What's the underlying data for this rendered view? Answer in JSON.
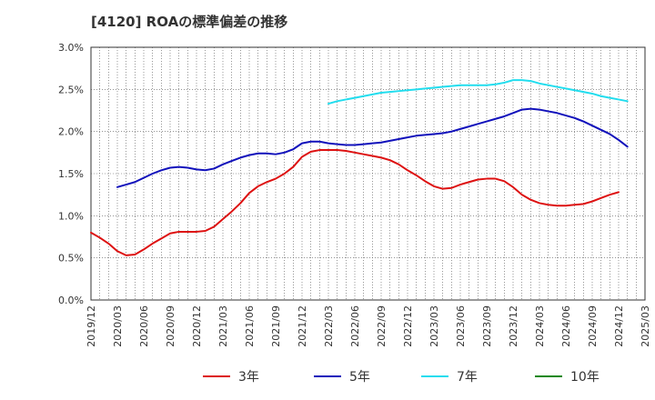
{
  "title": "[4120]  ROAの標準偏差の推移",
  "chart_data": {
    "type": "line",
    "title": "[4120]  ROAの標準偏差の推移",
    "xlabel": "",
    "ylabel": "",
    "ylim": [
      0,
      3.0
    ],
    "xlim": [
      "2019-12",
      "2025-03"
    ],
    "grid": true,
    "legend_position": "bottom",
    "y_ticks": [
      "0.0%",
      "0.5%",
      "1.0%",
      "1.5%",
      "2.0%",
      "2.5%",
      "3.0%"
    ],
    "x_ticks": [
      "2019/12",
      "2020/03",
      "2020/06",
      "2020/09",
      "2020/12",
      "2021/03",
      "2021/06",
      "2021/09",
      "2021/12",
      "2022/03",
      "2022/06",
      "2022/09",
      "2022/12",
      "2023/03",
      "2023/06",
      "2023/09",
      "2023/12",
      "2024/03",
      "2024/06",
      "2024/09",
      "2024/12",
      "2025/03"
    ],
    "series": [
      {
        "name": "3年",
        "color": "#dd1111",
        "points": [
          [
            "2019-12",
            0.8
          ],
          [
            "2020-01",
            0.74
          ],
          [
            "2020-02",
            0.67
          ],
          [
            "2020-03",
            0.58
          ],
          [
            "2020-04",
            0.53
          ],
          [
            "2020-05",
            0.54
          ],
          [
            "2020-06",
            0.6
          ],
          [
            "2020-07",
            0.67
          ],
          [
            "2020-08",
            0.73
          ],
          [
            "2020-09",
            0.79
          ],
          [
            "2020-10",
            0.81
          ],
          [
            "2020-11",
            0.81
          ],
          [
            "2020-12",
            0.81
          ],
          [
            "2021-01",
            0.82
          ],
          [
            "2021-02",
            0.87
          ],
          [
            "2021-03",
            0.96
          ],
          [
            "2021-04",
            1.05
          ],
          [
            "2021-05",
            1.15
          ],
          [
            "2021-06",
            1.27
          ],
          [
            "2021-07",
            1.35
          ],
          [
            "2021-08",
            1.4
          ],
          [
            "2021-09",
            1.44
          ],
          [
            "2021-10",
            1.5
          ],
          [
            "2021-11",
            1.58
          ],
          [
            "2021-12",
            1.7
          ],
          [
            "2022-01",
            1.76
          ],
          [
            "2022-02",
            1.78
          ],
          [
            "2022-03",
            1.78
          ],
          [
            "2022-04",
            1.78
          ],
          [
            "2022-05",
            1.77
          ],
          [
            "2022-06",
            1.75
          ],
          [
            "2022-07",
            1.73
          ],
          [
            "2022-08",
            1.71
          ],
          [
            "2022-09",
            1.69
          ],
          [
            "2022-10",
            1.66
          ],
          [
            "2022-11",
            1.61
          ],
          [
            "2022-12",
            1.54
          ],
          [
            "2023-01",
            1.48
          ],
          [
            "2023-02",
            1.41
          ],
          [
            "2023-03",
            1.35
          ],
          [
            "2023-04",
            1.32
          ],
          [
            "2023-05",
            1.33
          ],
          [
            "2023-06",
            1.37
          ],
          [
            "2023-07",
            1.4
          ],
          [
            "2023-08",
            1.43
          ],
          [
            "2023-09",
            1.44
          ],
          [
            "2023-10",
            1.44
          ],
          [
            "2023-11",
            1.41
          ],
          [
            "2023-12",
            1.34
          ],
          [
            "2024-01",
            1.25
          ],
          [
            "2024-02",
            1.19
          ],
          [
            "2024-03",
            1.15
          ],
          [
            "2024-04",
            1.13
          ],
          [
            "2024-05",
            1.12
          ],
          [
            "2024-06",
            1.12
          ],
          [
            "2024-07",
            1.13
          ],
          [
            "2024-08",
            1.14
          ],
          [
            "2024-09",
            1.17
          ],
          [
            "2024-10",
            1.21
          ],
          [
            "2024-11",
            1.25
          ],
          [
            "2024-12",
            1.28
          ]
        ]
      },
      {
        "name": "5年",
        "color": "#1111bb",
        "points": [
          [
            "2020-03",
            1.34
          ],
          [
            "2020-04",
            1.37
          ],
          [
            "2020-05",
            1.4
          ],
          [
            "2020-06",
            1.45
          ],
          [
            "2020-07",
            1.5
          ],
          [
            "2020-08",
            1.54
          ],
          [
            "2020-09",
            1.57
          ],
          [
            "2020-10",
            1.58
          ],
          [
            "2020-11",
            1.57
          ],
          [
            "2020-12",
            1.55
          ],
          [
            "2021-01",
            1.54
          ],
          [
            "2021-02",
            1.56
          ],
          [
            "2021-03",
            1.61
          ],
          [
            "2021-04",
            1.65
          ],
          [
            "2021-05",
            1.69
          ],
          [
            "2021-06",
            1.72
          ],
          [
            "2021-07",
            1.74
          ],
          [
            "2021-08",
            1.74
          ],
          [
            "2021-09",
            1.73
          ],
          [
            "2021-10",
            1.75
          ],
          [
            "2021-11",
            1.79
          ],
          [
            "2021-12",
            1.86
          ],
          [
            "2022-01",
            1.88
          ],
          [
            "2022-02",
            1.88
          ],
          [
            "2022-03",
            1.86
          ],
          [
            "2022-04",
            1.85
          ],
          [
            "2022-05",
            1.84
          ],
          [
            "2022-06",
            1.84
          ],
          [
            "2022-07",
            1.85
          ],
          [
            "2022-08",
            1.86
          ],
          [
            "2022-09",
            1.87
          ],
          [
            "2022-10",
            1.89
          ],
          [
            "2022-11",
            1.91
          ],
          [
            "2022-12",
            1.93
          ],
          [
            "2023-01",
            1.95
          ],
          [
            "2023-02",
            1.96
          ],
          [
            "2023-03",
            1.97
          ],
          [
            "2023-04",
            1.98
          ],
          [
            "2023-05",
            2.0
          ],
          [
            "2023-06",
            2.03
          ],
          [
            "2023-07",
            2.06
          ],
          [
            "2023-08",
            2.09
          ],
          [
            "2023-09",
            2.12
          ],
          [
            "2023-10",
            2.15
          ],
          [
            "2023-11",
            2.18
          ],
          [
            "2023-12",
            2.22
          ],
          [
            "2024-01",
            2.26
          ],
          [
            "2024-02",
            2.27
          ],
          [
            "2024-03",
            2.26
          ],
          [
            "2024-04",
            2.24
          ],
          [
            "2024-05",
            2.22
          ],
          [
            "2024-06",
            2.19
          ],
          [
            "2024-07",
            2.16
          ],
          [
            "2024-08",
            2.12
          ],
          [
            "2024-09",
            2.07
          ],
          [
            "2024-10",
            2.02
          ],
          [
            "2024-11",
            1.97
          ],
          [
            "2024-12",
            1.9
          ],
          [
            "2025-01",
            1.82
          ]
        ]
      },
      {
        "name": "7年",
        "color": "#22ddee",
        "points": [
          [
            "2022-03",
            2.33
          ],
          [
            "2022-04",
            2.36
          ],
          [
            "2022-05",
            2.38
          ],
          [
            "2022-06",
            2.4
          ],
          [
            "2022-07",
            2.42
          ],
          [
            "2022-08",
            2.44
          ],
          [
            "2022-09",
            2.46
          ],
          [
            "2022-10",
            2.47
          ],
          [
            "2022-11",
            2.48
          ],
          [
            "2022-12",
            2.49
          ],
          [
            "2023-01",
            2.5
          ],
          [
            "2023-02",
            2.51
          ],
          [
            "2023-03",
            2.52
          ],
          [
            "2023-04",
            2.53
          ],
          [
            "2023-05",
            2.54
          ],
          [
            "2023-06",
            2.55
          ],
          [
            "2023-07",
            2.55
          ],
          [
            "2023-08",
            2.55
          ],
          [
            "2023-09",
            2.55
          ],
          [
            "2023-10",
            2.56
          ],
          [
            "2023-11",
            2.58
          ],
          [
            "2023-12",
            2.61
          ],
          [
            "2024-01",
            2.61
          ],
          [
            "2024-02",
            2.6
          ],
          [
            "2024-03",
            2.57
          ],
          [
            "2024-04",
            2.55
          ],
          [
            "2024-05",
            2.53
          ],
          [
            "2024-06",
            2.51
          ],
          [
            "2024-07",
            2.49
          ],
          [
            "2024-08",
            2.47
          ],
          [
            "2024-09",
            2.45
          ],
          [
            "2024-10",
            2.42
          ],
          [
            "2024-11",
            2.4
          ],
          [
            "2024-12",
            2.38
          ],
          [
            "2025-01",
            2.36
          ]
        ]
      },
      {
        "name": "10年",
        "color": "#118811",
        "points": []
      }
    ]
  }
}
